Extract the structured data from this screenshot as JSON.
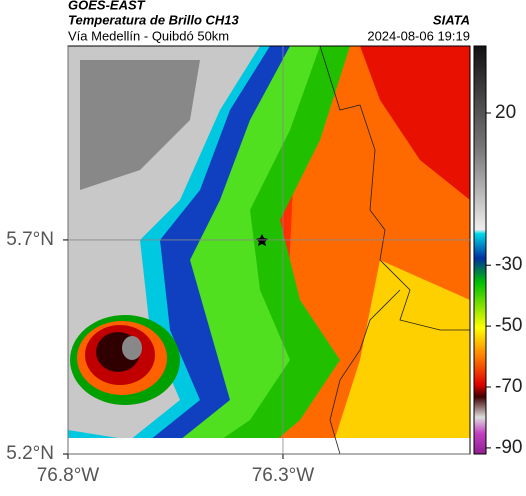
{
  "header": {
    "title": "GOES-EAST",
    "subtitle": "Temperatura de Brillo CH13",
    "source": "SIATA",
    "route": "Vía Medellín - Quibdó 50km",
    "datetime": "2024-08-06 19:19"
  },
  "map": {
    "lonlim": [
      -76.8,
      -75.865
    ],
    "latlim": [
      5.2,
      6.153
    ],
    "lonticks": [
      {
        "value": -76.8,
        "label": "76.8°W"
      },
      {
        "value": -76.3,
        "label": "76.3°W"
      }
    ],
    "latticks": [
      {
        "value": 5.7,
        "label": "5.7°N"
      },
      {
        "value": 5.2,
        "label": "5.2°N"
      }
    ],
    "grid": true
  },
  "colorbar": {
    "lim": [
      -92,
      42
    ],
    "ticks": [
      20,
      -30,
      -50,
      -70,
      -90
    ]
  }
}
